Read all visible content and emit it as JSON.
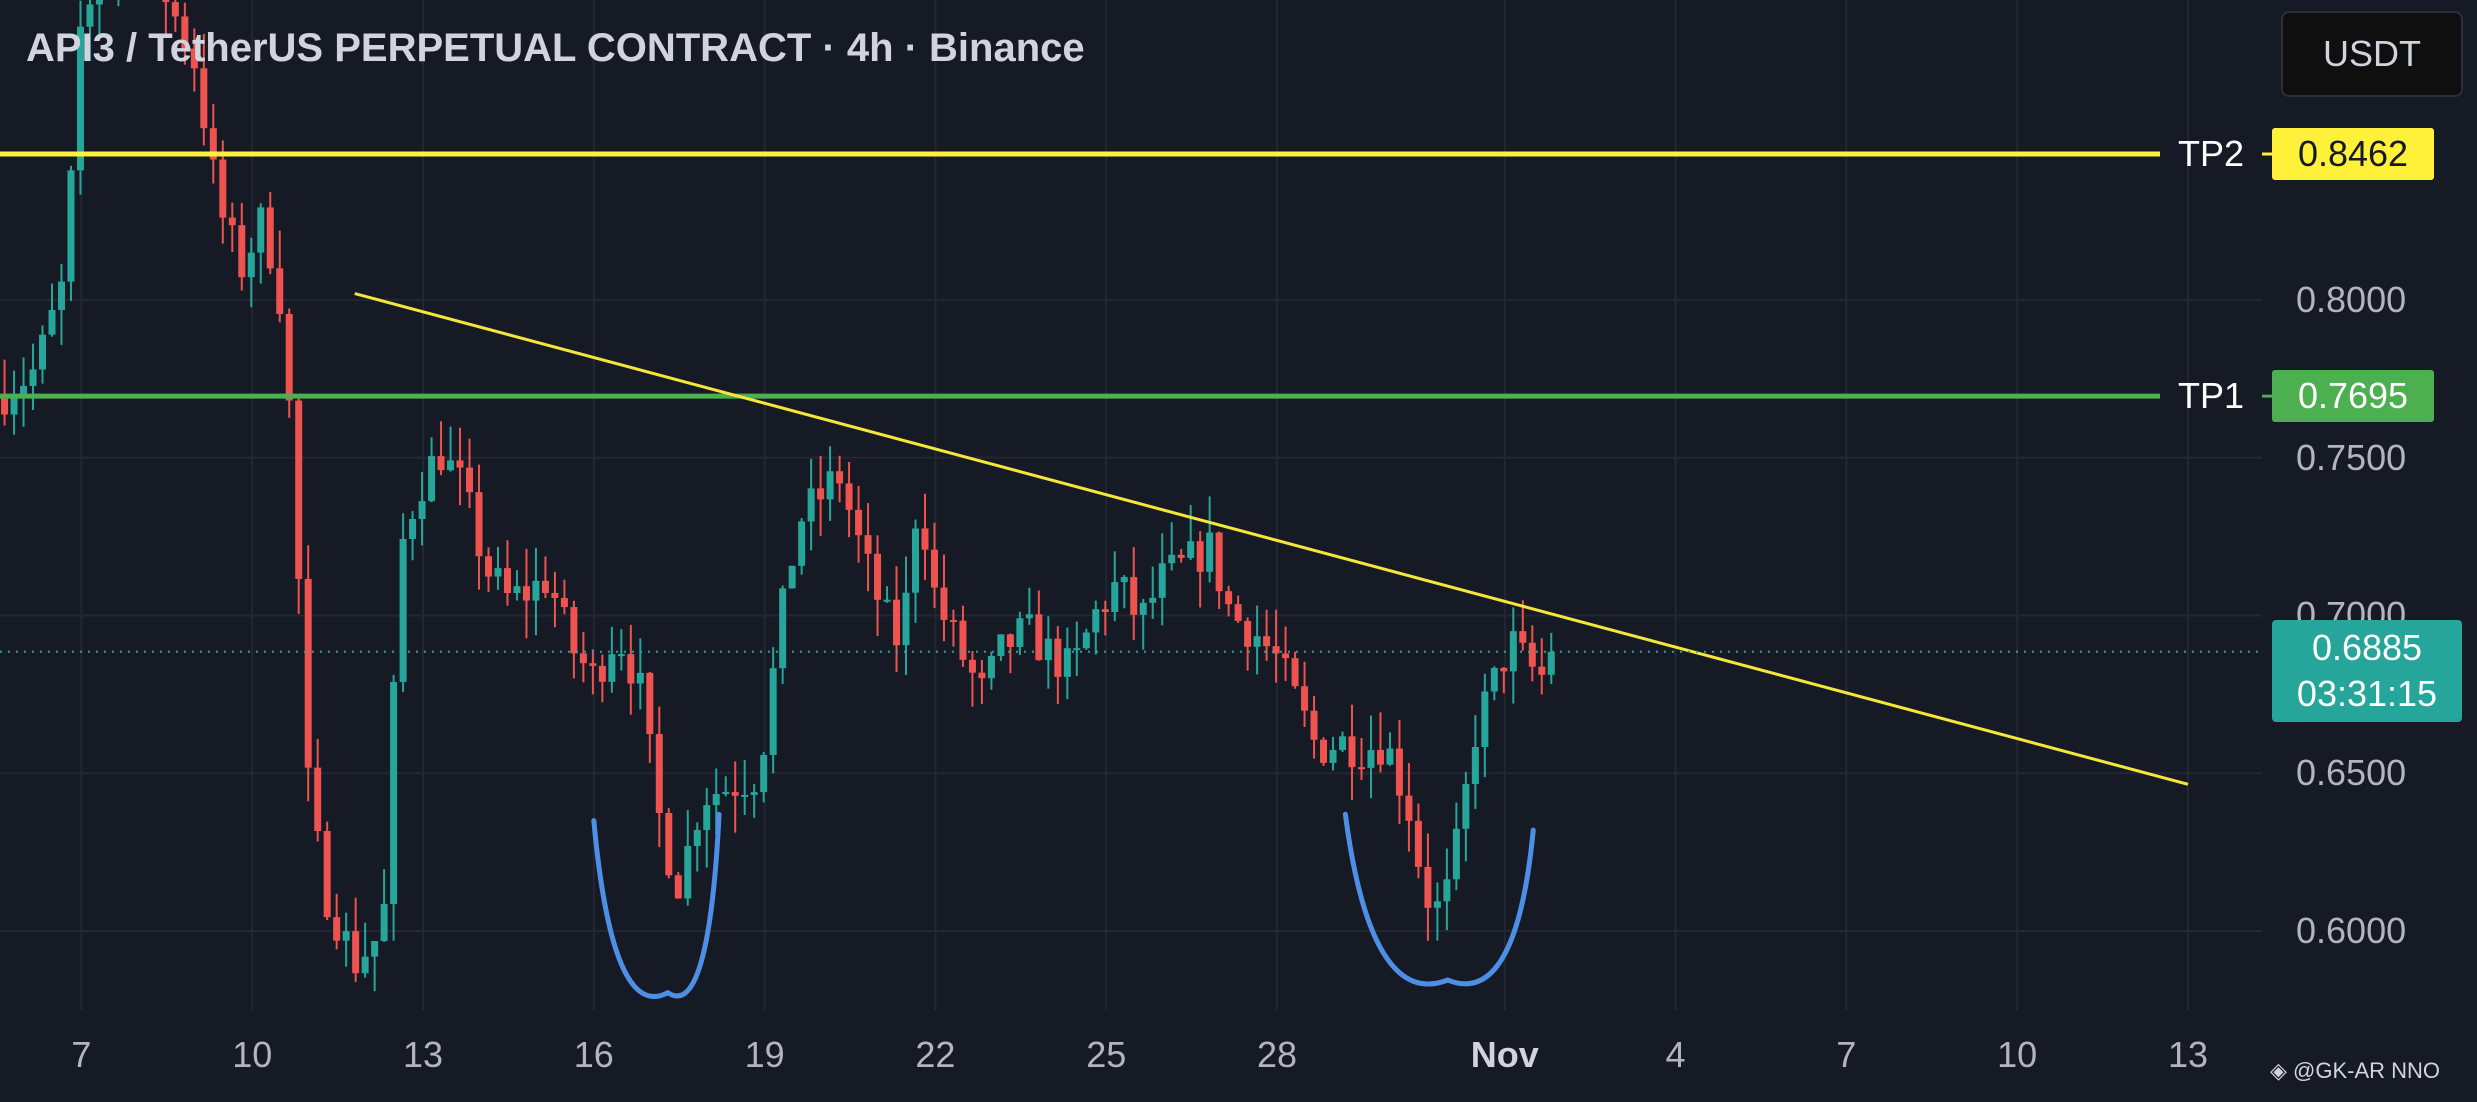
{
  "header": {
    "title": "API3 / TetherUS PERPETUAL CONTRACT · 4h · Binance",
    "currency": "USDT"
  },
  "attribution": "◈ @GK-AR  NNO",
  "colors": {
    "background": "#161a25",
    "grid": "#232733",
    "up_candle": "#26a69a",
    "down_candle": "#ef5350",
    "trendline": "#f5e63a",
    "tp1": "#4caf50",
    "tp2": "#fff03a",
    "pattern": "#4e8fe6",
    "current_price": "#26a69a"
  },
  "chart_data": {
    "type": "candlestick",
    "title": "API3 / TetherUS PERPETUAL CONTRACT · 4h · Binance",
    "price_axis": {
      "ylim": [
        0.575,
        0.895
      ],
      "ticks": [
        "0.6000",
        "0.6500",
        "0.7000",
        "0.7500",
        "0.8000"
      ],
      "tick_values": [
        0.6,
        0.65,
        0.7,
        0.75,
        0.8
      ]
    },
    "time_axis": {
      "ticks": [
        {
          "label": "7",
          "day": 7
        },
        {
          "label": "10",
          "day": 10
        },
        {
          "label": "13",
          "day": 13
        },
        {
          "label": "16",
          "day": 16
        },
        {
          "label": "19",
          "day": 19
        },
        {
          "label": "22",
          "day": 22
        },
        {
          "label": "25",
          "day": 25
        },
        {
          "label": "28",
          "day": 28
        },
        {
          "label": "Nov",
          "day": 32,
          "bold": true
        },
        {
          "label": "4",
          "day": 35
        },
        {
          "label": "7",
          "day": 38
        },
        {
          "label": "10",
          "day": 41
        },
        {
          "label": "13",
          "day": 44
        }
      ],
      "xlim_day": [
        5.57,
        45.3
      ]
    },
    "levels": [
      {
        "name": "TP2",
        "value": "0.8462",
        "price": 0.8462,
        "color": "#fff03a",
        "text_color": "#161a25"
      },
      {
        "name": "TP1",
        "value": "0.7695",
        "price": 0.7695,
        "color": "#4caf50",
        "text_color": "#ffffff"
      }
    ],
    "current_price": {
      "value": "0.6885",
      "price": 0.6885,
      "countdown": "03:31:15"
    },
    "trendline": {
      "start": {
        "day": 11.8,
        "price": 0.802
      },
      "end": {
        "day": 44.0,
        "price": 0.6465
      }
    },
    "rounded_bottoms": [
      {
        "left": {
          "day": 16.0,
          "price": 0.635
        },
        "bottom": {
          "day": 17.3,
          "price": 0.5805
        },
        "right": {
          "day": 18.2,
          "price": 0.637
        }
      },
      {
        "left": {
          "day": 29.2,
          "price": 0.637
        },
        "bottom": {
          "day": 31.0,
          "price": 0.5845
        },
        "right": {
          "day": 32.5,
          "price": 0.632
        }
      }
    ],
    "candle_anchors": [
      [
        5.6,
        0.77
      ],
      [
        6.2,
        0.778
      ],
      [
        6.7,
        0.806
      ],
      [
        7.0,
        0.885
      ],
      [
        7.4,
        0.905
      ],
      [
        7.9,
        0.915
      ],
      [
        8.4,
        0.9
      ],
      [
        9.0,
        0.875
      ],
      [
        9.4,
        0.83
      ],
      [
        9.8,
        0.81
      ],
      [
        10.2,
        0.826
      ],
      [
        10.5,
        0.8
      ],
      [
        10.7,
        0.755
      ],
      [
        11.0,
        0.64
      ],
      [
        11.3,
        0.612
      ],
      [
        11.8,
        0.59
      ],
      [
        12.3,
        0.6
      ],
      [
        12.6,
        0.72
      ],
      [
        12.9,
        0.74
      ],
      [
        13.3,
        0.752
      ],
      [
        13.7,
        0.74
      ],
      [
        14.1,
        0.715
      ],
      [
        14.5,
        0.705
      ],
      [
        14.9,
        0.708
      ],
      [
        15.2,
        0.712
      ],
      [
        15.6,
        0.69
      ],
      [
        16.0,
        0.68
      ],
      [
        16.4,
        0.695
      ],
      [
        16.8,
        0.678
      ],
      [
        17.2,
        0.63
      ],
      [
        17.5,
        0.615
      ],
      [
        17.9,
        0.643
      ],
      [
        18.4,
        0.646
      ],
      [
        18.9,
        0.65
      ],
      [
        19.3,
        0.7
      ],
      [
        19.6,
        0.73
      ],
      [
        20.0,
        0.738
      ],
      [
        20.3,
        0.745
      ],
      [
        20.7,
        0.72
      ],
      [
        21.1,
        0.7
      ],
      [
        21.4,
        0.69
      ],
      [
        21.7,
        0.74
      ],
      [
        22.0,
        0.705
      ],
      [
        22.4,
        0.69
      ],
      [
        22.8,
        0.675
      ],
      [
        23.2,
        0.69
      ],
      [
        23.6,
        0.695
      ],
      [
        24.0,
        0.688
      ],
      [
        24.4,
        0.682
      ],
      [
        24.8,
        0.7
      ],
      [
        25.2,
        0.71
      ],
      [
        25.6,
        0.698
      ],
      [
        26.0,
        0.712
      ],
      [
        26.4,
        0.716
      ],
      [
        26.8,
        0.722
      ],
      [
        27.2,
        0.7
      ],
      [
        27.6,
        0.695
      ],
      [
        28.0,
        0.686
      ],
      [
        28.4,
        0.67
      ],
      [
        28.7,
        0.658
      ],
      [
        29.1,
        0.66
      ],
      [
        29.5,
        0.658
      ],
      [
        29.9,
        0.66
      ],
      [
        30.3,
        0.64
      ],
      [
        30.6,
        0.612
      ],
      [
        30.9,
        0.605
      ],
      [
        31.2,
        0.63
      ],
      [
        31.5,
        0.665
      ],
      [
        31.8,
        0.678
      ],
      [
        32.1,
        0.692
      ],
      [
        32.4,
        0.684
      ],
      [
        32.7,
        0.68
      ],
      [
        32.9,
        0.6885
      ]
    ]
  }
}
